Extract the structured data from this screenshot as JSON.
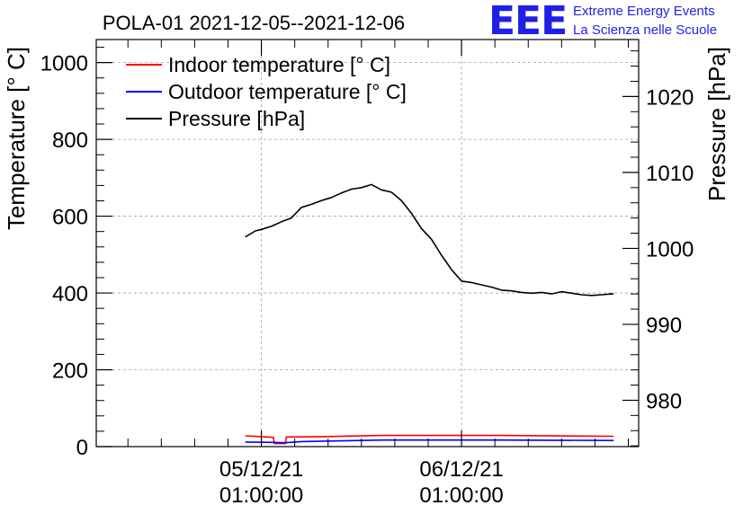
{
  "logo": {
    "mark": "EEE",
    "line1": "Extreme Energy Events",
    "line2": "La Scienza nelle Scuole"
  },
  "colors": {
    "indoor": "#ff0000",
    "outdoor": "#0000ff",
    "pressure": "#000000",
    "logo": "#1f1fe8"
  },
  "chart_data": {
    "type": "line",
    "title": "POLA-01 2021-12-05--2021-12-06",
    "ylabel": "Temperature [° C]",
    "y2label": "Pressure [hPa]",
    "ylim": [
      0,
      1060
    ],
    "y2lim": [
      973.9,
      1027.5
    ],
    "xlim": [
      -0.825,
      1.885
    ],
    "x_unit": "days since 05/12/21 01:00:00",
    "yticks": [
      0,
      200,
      400,
      600,
      800,
      1000
    ],
    "y2ticks": [
      980,
      990,
      1000,
      1010,
      1020
    ],
    "xticks": [
      {
        "x": 0,
        "line1": "05/12/21",
        "line2": "01:00:00"
      },
      {
        "x": 1,
        "line1": "06/12/21",
        "line2": "01:00:00"
      }
    ],
    "grid": true,
    "legend_position": "top-left",
    "series": [
      {
        "name": "Indoor temperature [° C]",
        "axis": "left",
        "color": "#ff0000",
        "x": [
          -0.08,
          0.0,
          0.06,
          0.065,
          0.12,
          0.125,
          0.3,
          0.6,
          1.2,
          1.76
        ],
        "y": [
          28,
          26,
          24,
          8,
          8,
          25,
          26,
          29,
          29,
          27
        ]
      },
      {
        "name": "Outdoor temperature [° C]",
        "axis": "left",
        "color": "#0000ff",
        "x": [
          -0.08,
          0.06,
          0.12,
          0.2,
          0.4,
          0.6,
          1.2,
          1.76
        ],
        "y": [
          12,
          11,
          10,
          13,
          15,
          17,
          17,
          16
        ]
      },
      {
        "name": "Pressure [hPa]",
        "axis": "right",
        "color": "#000000",
        "x": [
          -0.08,
          -0.03,
          0.0,
          0.05,
          0.1,
          0.15,
          0.2,
          0.25,
          0.3,
          0.35,
          0.4,
          0.45,
          0.5,
          0.55,
          0.6,
          0.65,
          0.7,
          0.75,
          0.8,
          0.85,
          0.9,
          0.95,
          1.0,
          1.05,
          1.1,
          1.15,
          1.2,
          1.25,
          1.3,
          1.35,
          1.4,
          1.45,
          1.5,
          1.55,
          1.6,
          1.65,
          1.7,
          1.75,
          1.76
        ],
        "y": [
          1001.5,
          1002.3,
          1002.5,
          1002.9,
          1003.5,
          1004.0,
          1005.4,
          1005.8,
          1006.3,
          1006.7,
          1007.3,
          1007.8,
          1008.0,
          1008.4,
          1007.7,
          1007.4,
          1006.3,
          1004.6,
          1002.6,
          1001.2,
          999.1,
          997.2,
          995.7,
          995.5,
          995.2,
          994.9,
          994.5,
          994.4,
          994.2,
          994.1,
          994.2,
          994.0,
          994.3,
          994.1,
          993.9,
          993.8,
          993.9,
          994.0,
          994.0
        ]
      }
    ]
  }
}
